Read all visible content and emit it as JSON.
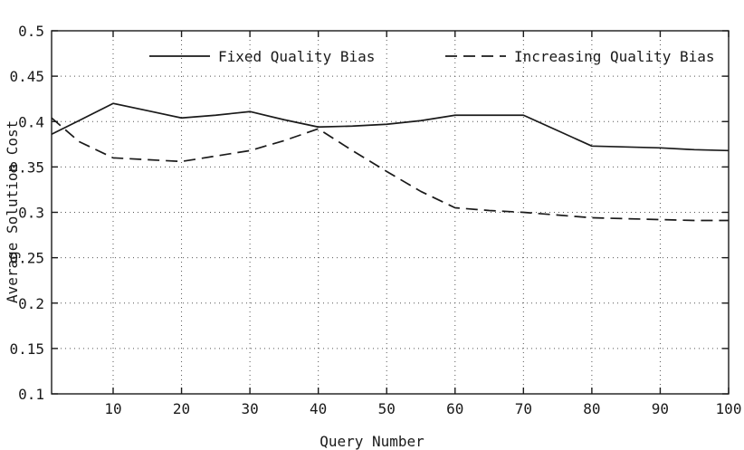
{
  "chart_data": {
    "type": "line",
    "title": "",
    "xlabel": "Query Number",
    "ylabel": "Average Solution Cost",
    "xlim": [
      1,
      100
    ],
    "ylim": [
      0.1,
      0.5
    ],
    "x_ticks": [
      10,
      20,
      30,
      40,
      50,
      60,
      70,
      80,
      90,
      100
    ],
    "x_tick_labels": [
      "10",
      "20",
      "30",
      "40",
      "50",
      "60",
      "70",
      "80",
      "90",
      "100"
    ],
    "y_ticks": [
      0.1,
      0.15,
      0.2,
      0.25,
      0.3,
      0.35,
      0.4,
      0.45,
      0.5
    ],
    "y_tick_labels": [
      "0.1",
      "0.15",
      "0.2",
      "0.25",
      "0.3",
      "0.35",
      "0.4",
      "0.45",
      "0.5"
    ],
    "grid": true,
    "grid_style": "dotted",
    "legend_position": "top-inside",
    "line_color": "#1a1a1a",
    "series": [
      {
        "name": "Fixed Quality Bias",
        "style": "solid",
        "x": [
          1,
          5,
          10,
          15,
          20,
          25,
          30,
          35,
          40,
          45,
          50,
          55,
          60,
          65,
          70,
          75,
          80,
          85,
          90,
          95,
          100
        ],
        "y": [
          0.386,
          0.401,
          0.42,
          0.412,
          0.404,
          0.407,
          0.411,
          0.402,
          0.394,
          0.395,
          0.397,
          0.401,
          0.407,
          0.407,
          0.407,
          0.39,
          0.373,
          0.372,
          0.371,
          0.369,
          0.368
        ]
      },
      {
        "name": "Increasing Quality Bias",
        "style": "dashed",
        "x": [
          1,
          5,
          10,
          15,
          20,
          25,
          30,
          35,
          40,
          45,
          50,
          55,
          60,
          65,
          70,
          75,
          80,
          85,
          90,
          95,
          100
        ],
        "y": [
          0.404,
          0.378,
          0.36,
          0.358,
          0.356,
          0.362,
          0.368,
          0.379,
          0.392,
          0.368,
          0.345,
          0.323,
          0.305,
          0.302,
          0.3,
          0.297,
          0.294,
          0.293,
          0.292,
          0.291,
          0.291
        ]
      }
    ]
  }
}
